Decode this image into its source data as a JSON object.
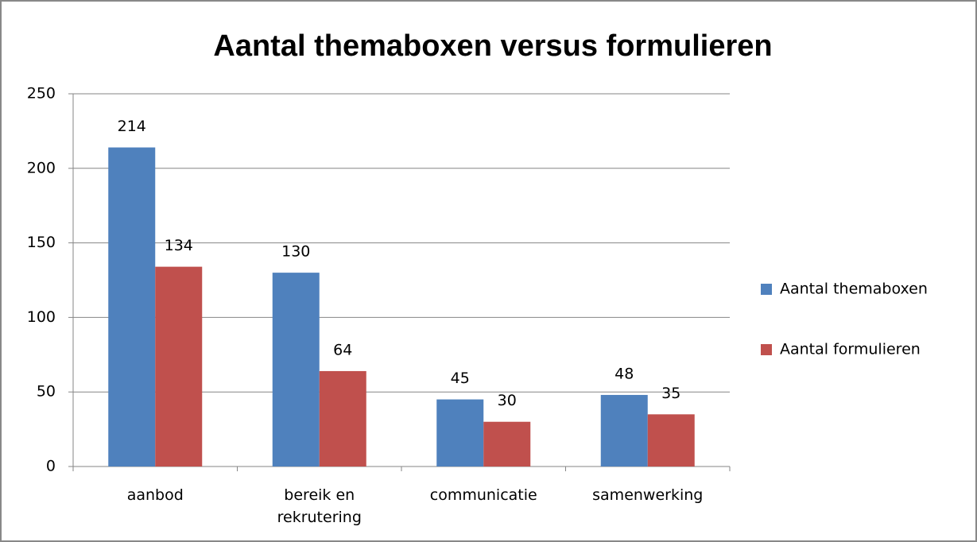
{
  "chart_data": {
    "type": "bar",
    "title": "Aantal themaboxen versus formulieren",
    "categories": [
      "aanbod",
      "bereik en rekrutering",
      "communicatie",
      "samenwerking"
    ],
    "series": [
      {
        "name": "Aantal themaboxen",
        "color": "#4f81bd",
        "values": [
          214,
          130,
          45,
          48
        ]
      },
      {
        "name": "Aantal formulieren",
        "color": "#c0504d",
        "values": [
          134,
          64,
          30,
          35
        ]
      }
    ],
    "ylim": [
      0,
      250
    ],
    "yticks": [
      0,
      50,
      100,
      150,
      200,
      250
    ],
    "grid": true,
    "legend": "right"
  }
}
